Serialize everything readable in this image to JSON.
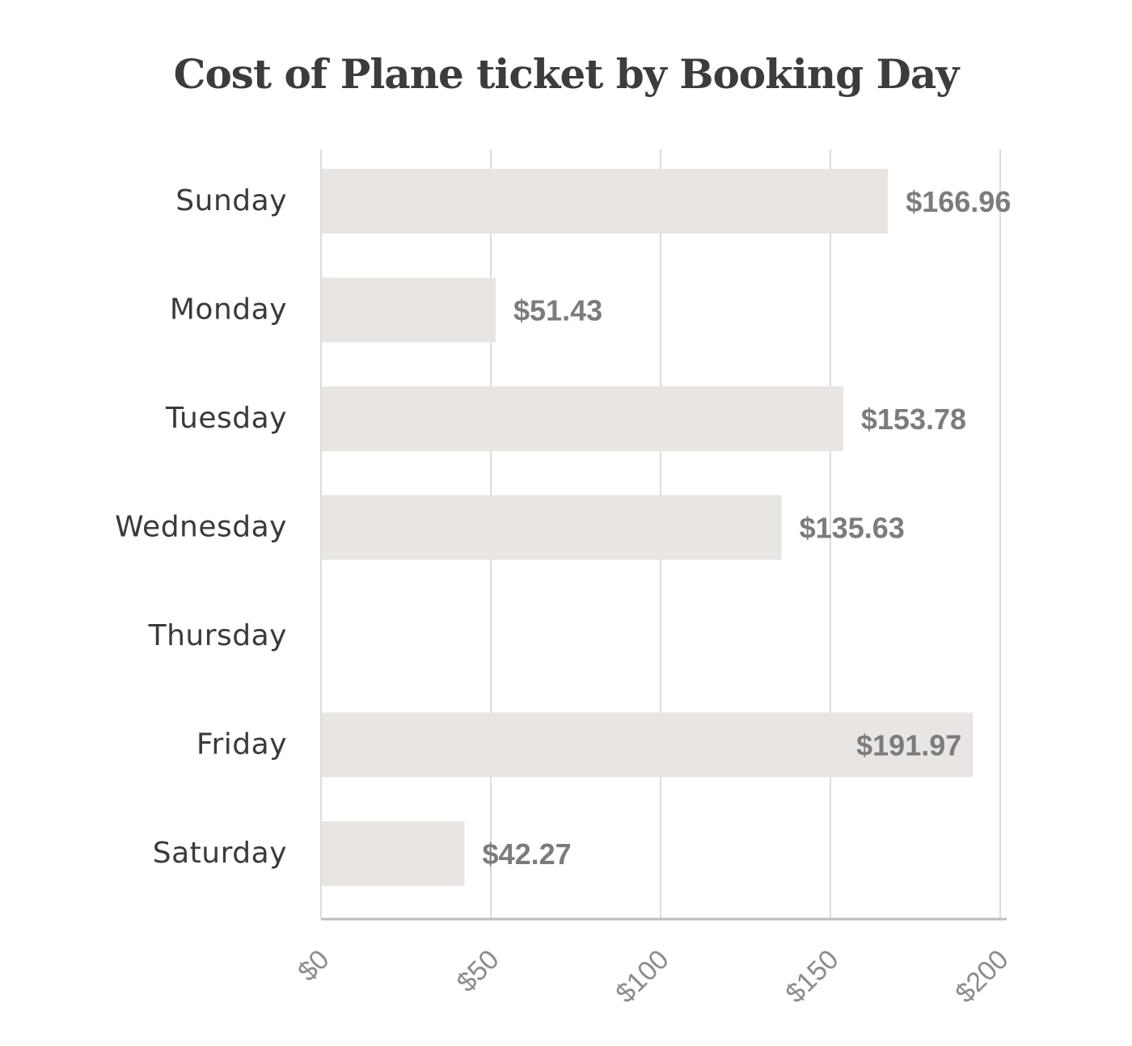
{
  "chart_data": {
    "type": "bar",
    "orientation": "horizontal",
    "title": "Cost of Plane ticket by Booking Day",
    "xlabel": "",
    "ylabel": "",
    "categories": [
      "Sunday",
      "Monday",
      "Tuesday",
      "Wednesday",
      "Thursday",
      "Friday",
      "Saturday"
    ],
    "values": [
      166.96,
      51.43,
      153.78,
      135.63,
      null,
      191.97,
      42.27
    ],
    "value_labels": [
      "$166.96",
      "$51.43",
      "$153.78",
      "$135.63",
      "",
      "$191.97",
      "$42.27"
    ],
    "xlim": [
      0,
      200
    ],
    "xticks": [
      0,
      50,
      100,
      150,
      200
    ],
    "xtick_labels": [
      "$0",
      "$50",
      "$100",
      "$150",
      "$200"
    ],
    "grid": "vertical",
    "legend": "none"
  },
  "colors": {
    "bar": "#e8e5e3",
    "gridline": "#dcdcdc",
    "axis": "#bdbdbd",
    "title": "#3c3c3c"
  }
}
